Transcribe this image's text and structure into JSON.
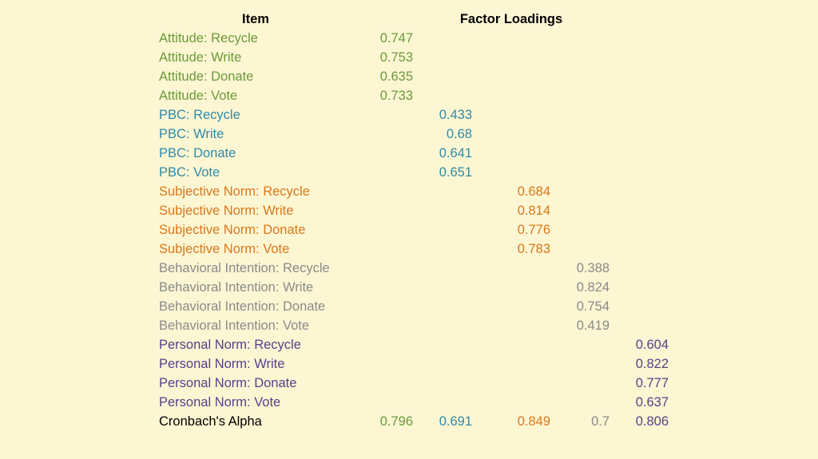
{
  "header": {
    "item": "Item",
    "factor_loadings": "Factor Loadings"
  },
  "colors": {
    "attitude": "#6a9a3a",
    "pbc": "#2e8aa8",
    "subjective_norm": "#d9771a",
    "behavioral_intention": "#8a8a8a",
    "personal_norm": "#5a3e8a",
    "background": "#fdf6d3"
  },
  "rows": [
    {
      "item": "Attitude: Recycle",
      "col": 0,
      "value": "0.747"
    },
    {
      "item": "Attitude: Write",
      "col": 0,
      "value": "0.753"
    },
    {
      "item": "Attitude: Donate",
      "col": 0,
      "value": "0.635"
    },
    {
      "item": "Attitude: Vote",
      "col": 0,
      "value": "0.733"
    },
    {
      "item": "PBC: Recycle",
      "col": 1,
      "value": "0.433"
    },
    {
      "item": "PBC: Write",
      "col": 1,
      "value": "0.68"
    },
    {
      "item": "PBC: Donate",
      "col": 1,
      "value": "0.641"
    },
    {
      "item": "PBC: Vote",
      "col": 1,
      "value": "0.651"
    },
    {
      "item": "Subjective Norm: Recycle",
      "col": 2,
      "value": "0.684"
    },
    {
      "item": "Subjective Norm: Write",
      "col": 2,
      "value": "0.814"
    },
    {
      "item": "Subjective Norm: Donate",
      "col": 2,
      "value": "0.776"
    },
    {
      "item": "Subjective Norm: Vote",
      "col": 2,
      "value": "0.783"
    },
    {
      "item": "Behavioral Intention: Recycle",
      "col": 3,
      "value": "0.388"
    },
    {
      "item": "Behavioral Intention: Write",
      "col": 3,
      "value": "0.824"
    },
    {
      "item": "Behavioral Intention: Donate",
      "col": 3,
      "value": "0.754"
    },
    {
      "item": "Behavioral Intention: Vote",
      "col": 3,
      "value": "0.419"
    },
    {
      "item": "Personal Norm: Recycle",
      "col": 4,
      "value": "0.604"
    },
    {
      "item": "Personal Norm: Write",
      "col": 4,
      "value": "0.822"
    },
    {
      "item": "Personal Norm: Donate",
      "col": 4,
      "value": "0.777"
    },
    {
      "item": "Personal Norm: Vote",
      "col": 4,
      "value": "0.637"
    }
  ],
  "alpha": {
    "label": "Cronbach's Alpha",
    "values": [
      "0.796",
      "0.691",
      "0.849",
      "0.7",
      "0.806"
    ]
  }
}
